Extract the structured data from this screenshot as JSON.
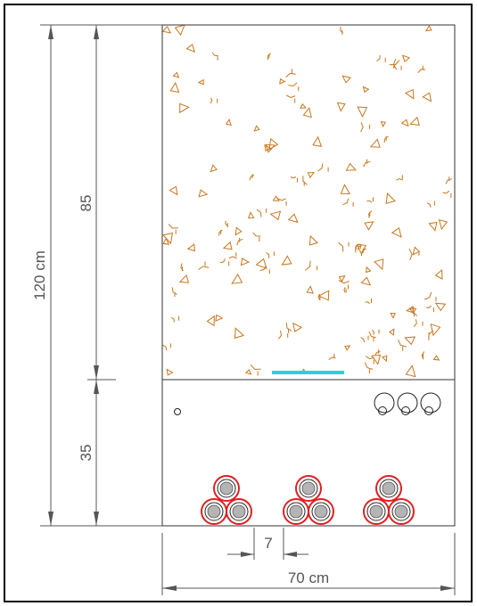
{
  "drawing": {
    "dimensions": {
      "total_height_label": "120 cm",
      "upper_height_label": "85",
      "lower_height_label": "35",
      "width_label": "70 cm",
      "spacing_label": "7"
    },
    "cable_groups": [
      {
        "name": "cable-trefoil-1",
        "cables": 3
      },
      {
        "name": "cable-trefoil-2",
        "cables": 3
      },
      {
        "name": "cable-trefoil-3",
        "cables": 3
      }
    ],
    "small_conduits": 3,
    "colors": {
      "frame": "#000000",
      "dimension_lines": "#555555",
      "aggregate": "#c8761e",
      "warning_tape": "#22d3e8",
      "cable_outer": "#e0201f",
      "cable_core": "#b4b4b4"
    }
  }
}
